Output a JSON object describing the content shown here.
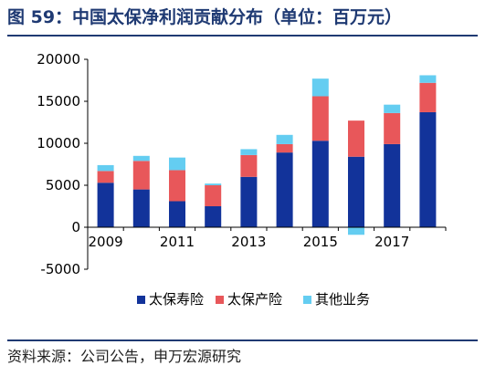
{
  "header": {
    "title": "图 59：中国太保净利润贡献分布（单位：百万元）"
  },
  "footer": {
    "source": "资料来源：公司公告，申万宏源研究"
  },
  "colors": {
    "title": "#1f3a73",
    "rule": "#1f3a73"
  },
  "chart_data": {
    "type": "bar",
    "stacked": true,
    "categories": [
      "2009",
      "2010",
      "2011",
      "2012",
      "2013",
      "2014",
      "2015",
      "2016",
      "2017",
      "2018"
    ],
    "x_tick_labels": [
      "2009",
      "",
      "2011",
      "",
      "2013",
      "",
      "2015",
      "",
      "2017",
      ""
    ],
    "series": [
      {
        "name": "太保寿险",
        "color": "#12339a",
        "values": [
          5300,
          4500,
          3100,
          2500,
          6000,
          8900,
          10300,
          8400,
          9900,
          13700
        ]
      },
      {
        "name": "太保产险",
        "color": "#e8575a",
        "values": [
          1400,
          3400,
          3700,
          2500,
          2600,
          1000,
          5300,
          4300,
          3700,
          3500
        ]
      },
      {
        "name": "其他业务",
        "color": "#64cdf1",
        "values": [
          700,
          600,
          1500,
          200,
          700,
          1100,
          2100,
          -900,
          1000,
          900
        ]
      }
    ],
    "ylim": [
      -5000,
      20000
    ],
    "yticks": [
      -5000,
      0,
      5000,
      10000,
      15000,
      20000
    ],
    "grid": false,
    "legend_position": "bottom",
    "xlabel": "",
    "ylabel": ""
  }
}
